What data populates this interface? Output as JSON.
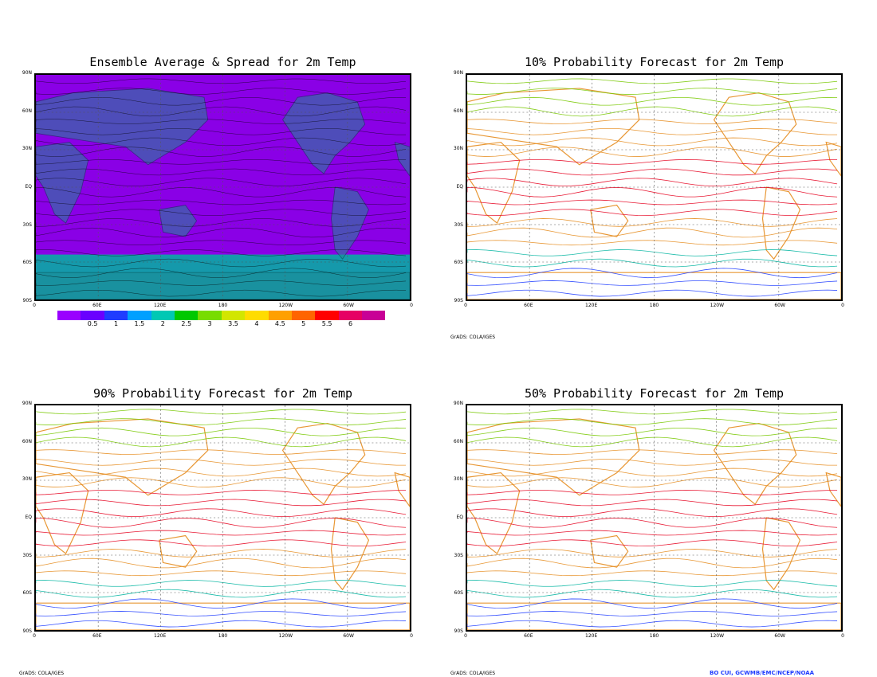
{
  "panels": [
    {
      "id": "ens",
      "title": "Ensemble Average & Spread for 2m Temp"
    },
    {
      "id": "p10",
      "title": "10% Probability Forecast for 2m Temp"
    },
    {
      "id": "p90",
      "title": "90% Probability Forecast for 2m Temp"
    },
    {
      "id": "p50",
      "title": "50% Probability Forecast for 2m Temp"
    }
  ],
  "lat_labels": [
    "90N",
    "60N",
    "30N",
    "EQ",
    "30S",
    "60S",
    "90S"
  ],
  "lon_labels": [
    "0",
    "60E",
    "120E",
    "180",
    "120W",
    "60W",
    "0"
  ],
  "colorbar": {
    "colors": [
      "#9a00ff",
      "#6a00ff",
      "#1f3cff",
      "#00a0ff",
      "#00c8b4",
      "#00c800",
      "#78dc00",
      "#d2e600",
      "#ffdc00",
      "#ffa000",
      "#ff6400",
      "#ff0000",
      "#e60064",
      "#c80096"
    ],
    "labels": [
      "0.5",
      "1",
      "1.5",
      "2",
      "2.5",
      "3",
      "3.5",
      "4",
      "4.5",
      "5",
      "5.5",
      "6"
    ]
  },
  "credits": {
    "grads": "GrADS: COLA/IGES",
    "author": "BO CUI, GCWMB/EMC/NCEP/NOAA"
  },
  "map_colors": {
    "ensemble_bg": "#8a00e6",
    "contour_warm": "#e6001e",
    "contour_mid": "#e68c1e",
    "contour_cool": "#00b4a0",
    "contour_cold": "#1e3cff"
  }
}
